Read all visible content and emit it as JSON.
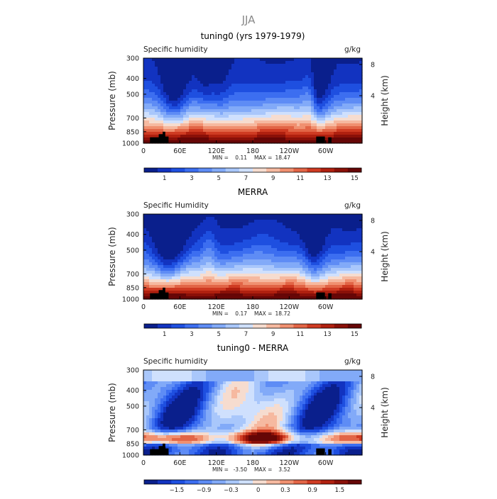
{
  "page_title": "JJA",
  "colors": {
    "ramp15": [
      "#0a1f8c",
      "#1233c0",
      "#1e4fe0",
      "#3c6ef0",
      "#5e8cf5",
      "#82aaf8",
      "#a9c7fb",
      "#cfe0fd",
      "#f6dccf",
      "#f6b9a0",
      "#f09070",
      "#e26546",
      "#cf3b22",
      "#b0200f",
      "#8a1008",
      "#660606"
    ],
    "land": "#000000"
  },
  "chart_data": [
    {
      "type": "heatmap",
      "title": "tuning0 (yrs 1979-1979)",
      "left_label": "Specific humidity",
      "right_label": "g/kg",
      "ylabel": "Pressure (mb)",
      "ylabel_right": "Height (km)",
      "yticks": [
        "300",
        "400",
        "500",
        "700",
        "850",
        "1000"
      ],
      "yticks_right": [
        "8",
        "4"
      ],
      "xticks": [
        "0",
        "60E",
        "120E",
        "180",
        "120W",
        "60W"
      ],
      "stats": {
        "min_label": "MIN =",
        "min": "0.11",
        "max_label": "MAX =",
        "max": "18.47"
      },
      "colorbar_labels": [
        "1",
        "3",
        "5",
        "7",
        "9",
        "11",
        "13",
        "15"
      ],
      "x_range": [
        0,
        360
      ],
      "levels": [
        300,
        400,
        500,
        700,
        850,
        1000
      ],
      "profile_profile": "model"
    },
    {
      "type": "heatmap",
      "title": "MERRA",
      "left_label": "Specific Humidity",
      "right_label": "g/kg",
      "ylabel": "Pressure (mb)",
      "ylabel_right": "Height (km)",
      "yticks": [
        "300",
        "400",
        "500",
        "700",
        "850",
        "1000"
      ],
      "yticks_right": [
        "8",
        "4"
      ],
      "xticks": [
        "0",
        "60E",
        "120E",
        "180",
        "120W",
        "60W"
      ],
      "stats": {
        "min_label": "MIN =",
        "min": "0.17",
        "max_label": "MAX =",
        "max": "18.72"
      },
      "colorbar_labels": [
        "1",
        "3",
        "5",
        "7",
        "9",
        "11",
        "13",
        "15"
      ],
      "x_range": [
        0,
        360
      ],
      "levels": [
        300,
        400,
        500,
        700,
        850,
        1000
      ],
      "profile_profile": "obs"
    },
    {
      "type": "heatmap",
      "title": "tuning0 - MERRA",
      "left_label": "Specific humidity",
      "right_label": "g/kg",
      "ylabel": "Pressure (mb)",
      "ylabel_right": "Height (km)",
      "yticks": [
        "300",
        "400",
        "500",
        "700",
        "850",
        "1000"
      ],
      "yticks_right": [
        "8",
        "4"
      ],
      "xticks": [
        "0",
        "60E",
        "120E",
        "180",
        "120W",
        "60W"
      ],
      "stats": {
        "min_label": "MIN =",
        "min": "-3.50",
        "max_label": "MAX =",
        "max": "3.52"
      },
      "colorbar_labels": [
        "−1.5",
        "−0.9",
        "−0.3",
        "0",
        "0.3",
        "0.9",
        "1.5"
      ],
      "x_range": [
        0,
        360
      ],
      "levels": [
        300,
        400,
        500,
        700,
        850,
        1000
      ],
      "profile_profile": "diff"
    }
  ]
}
